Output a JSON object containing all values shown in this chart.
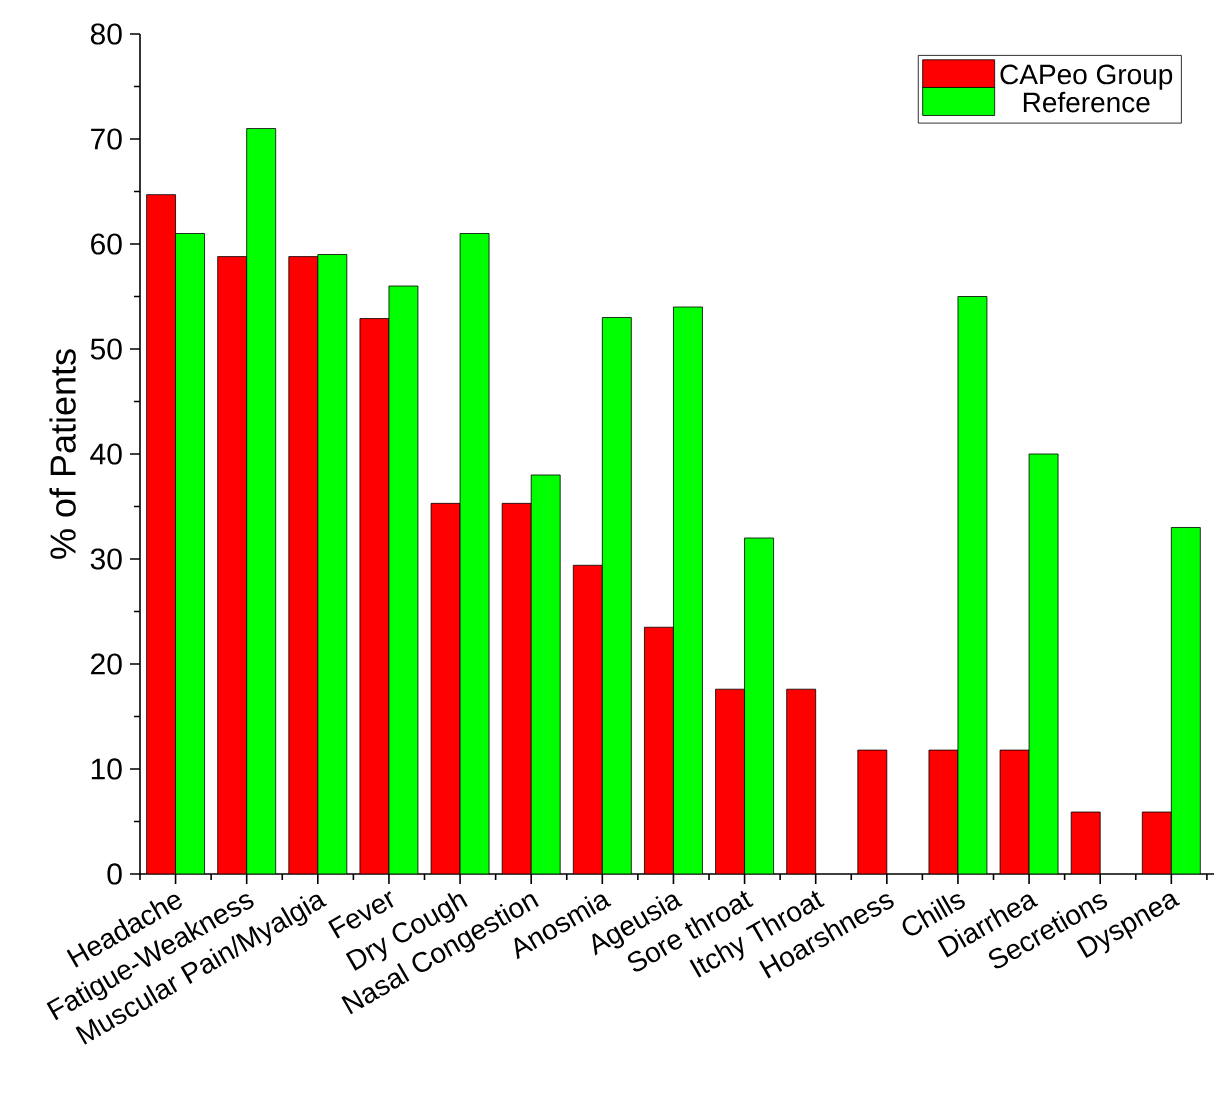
{
  "chart_data": {
    "type": "bar",
    "ylabel": "% of Patients",
    "categories": [
      "Headache",
      "Fatigue-Weakness",
      "Muscular Pain/Myalgia",
      "Fever",
      "Dry Cough",
      "Nasal Congestion",
      "Anosmia",
      "Ageusia",
      "Sore throat",
      "Itchy Throat",
      "Hoarshness",
      "Chills",
      "Diarrhea",
      "Secretions",
      "Dyspnea"
    ],
    "series": [
      {
        "name": "CAPeo Group",
        "color": "#ff0000",
        "values": [
          64.7,
          58.8,
          58.8,
          52.9,
          35.3,
          35.3,
          29.4,
          23.5,
          17.6,
          17.6,
          11.8,
          11.8,
          11.8,
          5.9,
          5.9
        ]
      },
      {
        "name": "Reference",
        "color": "#00ff00",
        "values": [
          61,
          71,
          59,
          56,
          61,
          38,
          53,
          54,
          32,
          null,
          null,
          55,
          40,
          null,
          33
        ]
      }
    ],
    "ylim": [
      0,
      80
    ],
    "yticks": [
      0,
      10,
      20,
      30,
      40,
      50,
      60,
      70,
      80
    ],
    "legend": "top right",
    "grid": false
  }
}
